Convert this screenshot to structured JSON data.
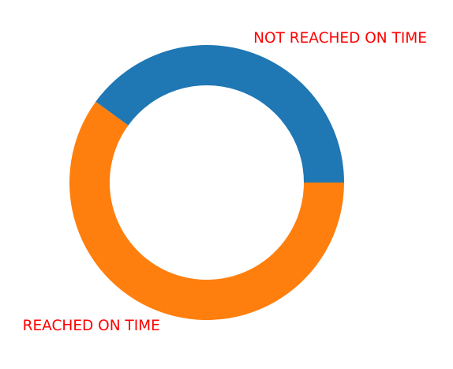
{
  "chart_data": {
    "type": "pie",
    "variant": "donut",
    "title": "",
    "slices": [
      {
        "label": "NOT REACHED ON TIME",
        "value": 0.4,
        "color": "#1f77b4"
      },
      {
        "label": "REACHED ON TIME",
        "value": 0.6,
        "color": "#ff7f0e"
      }
    ],
    "label_color": "#ff0000",
    "legend": "none"
  }
}
